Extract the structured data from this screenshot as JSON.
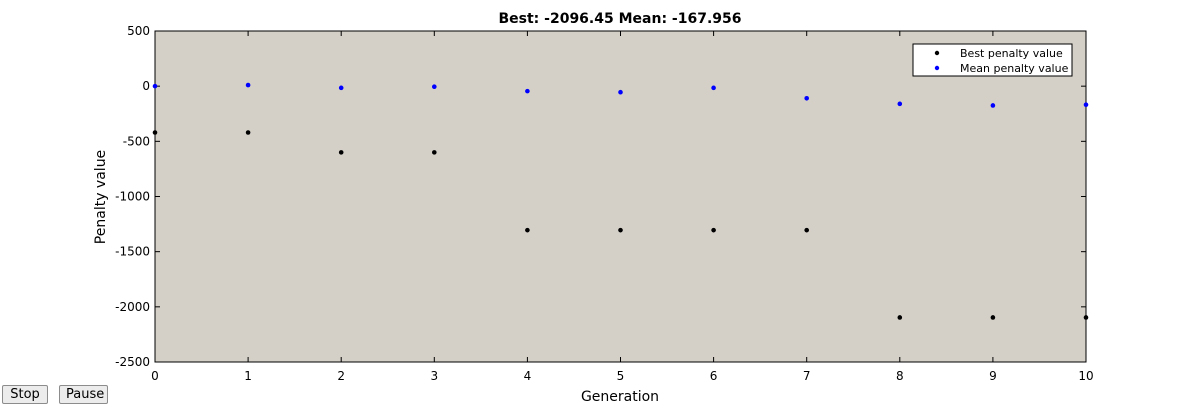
{
  "controls": {
    "stop_label": "Stop",
    "pause_label": "Pause"
  },
  "chart_data": {
    "type": "scatter",
    "title": "Best: -2096.45 Mean: -167.956",
    "xlabel": "Generation",
    "ylabel": "Penalty value",
    "xlim": [
      0,
      10
    ],
    "ylim": [
      -2500,
      500
    ],
    "xticks": [
      0,
      1,
      2,
      3,
      4,
      5,
      6,
      7,
      8,
      9,
      10
    ],
    "yticks": [
      500,
      0,
      -500,
      -1000,
      -1500,
      -2000,
      -2500
    ],
    "legend_position": "top-right",
    "plot_background": "#d4d0c8",
    "series": [
      {
        "name": "Best penalty value",
        "color": "#000000",
        "x": [
          0,
          1,
          2,
          3,
          4,
          5,
          6,
          7,
          8,
          9,
          10
        ],
        "y": [
          -420,
          -420,
          -600,
          -600,
          -1305,
          -1305,
          -1305,
          -1305,
          -2096.45,
          -2096.45,
          -2096.45
        ]
      },
      {
        "name": "Mean penalty value",
        "color": "#0000ff",
        "x": [
          0,
          1,
          2,
          3,
          4,
          5,
          6,
          7,
          8,
          9,
          10
        ],
        "y": [
          0,
          10,
          -15,
          -5,
          -45,
          -55,
          -15,
          -110,
          -160,
          -175,
          -167.956
        ]
      }
    ]
  }
}
